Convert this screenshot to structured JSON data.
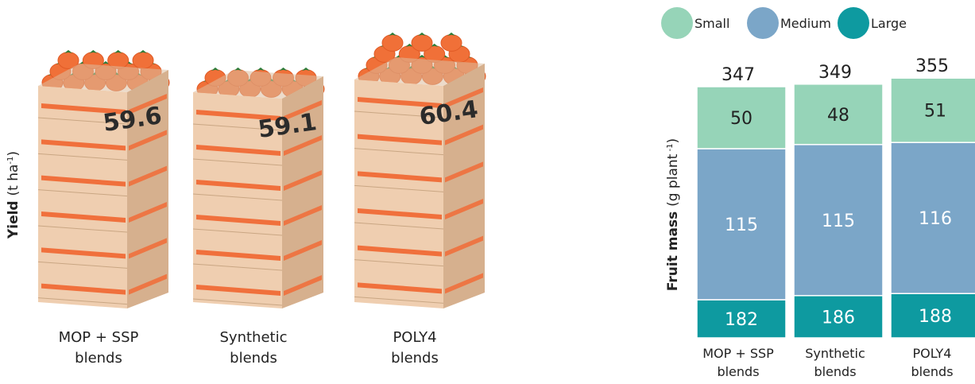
{
  "colors": {
    "small": "#96d4b8",
    "medium": "#7ba6c8",
    "large": "#0e9aa0",
    "crate_front": "#efceb0",
    "crate_side": "#d6b08e",
    "crate_top": "#dcbd9e",
    "slat": "#f0703c",
    "tomato": "#f07038",
    "tomato_shade": "#e05a25",
    "leaf": "#2f7d3a"
  },
  "chart_data": [
    {
      "type": "pictograph",
      "ylabel": {
        "bold": "Yield",
        "unit": "(t ha",
        "sup": "-1",
        "close": ")"
      },
      "categories": [
        {
          "line1": "MOP + SSP",
          "line2": "blends"
        },
        {
          "line1": "Synthetic",
          "line2": "blends"
        },
        {
          "line1": "POLY4",
          "line2": "blends"
        }
      ],
      "values": [
        "59.6",
        "59.1",
        "60.4"
      ]
    },
    {
      "type": "bar",
      "stacked": true,
      "ylabel": {
        "bold": "Fruit mass",
        "unit": "(g plant",
        "sup": "-1",
        "close": ")"
      },
      "legend": [
        "Small",
        "Medium",
        "Large"
      ],
      "legend_position": "top-right",
      "categories": [
        {
          "line1": "MOP + SSP",
          "line2": "blends"
        },
        {
          "line1": "Synthetic",
          "line2": "blends"
        },
        {
          "line1": "POLY4",
          "line2": "blends"
        }
      ],
      "totals": [
        347,
        349,
        355
      ],
      "series": [
        {
          "name": "Large",
          "values": [
            182,
            186,
            188
          ]
        },
        {
          "name": "Medium",
          "values": [
            115,
            115,
            116
          ]
        },
        {
          "name": "Small",
          "values": [
            50,
            48,
            51
          ]
        }
      ]
    }
  ]
}
